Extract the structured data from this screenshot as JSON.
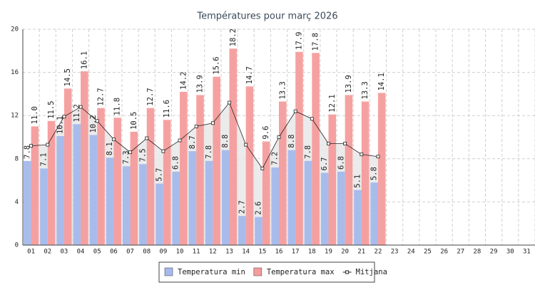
{
  "chart_data": {
    "type": "bar",
    "title": "Températures pour març 2026",
    "categories": [
      "01",
      "02",
      "03",
      "04",
      "05",
      "06",
      "07",
      "08",
      "09",
      "10",
      "11",
      "12",
      "13",
      "14",
      "15",
      "16",
      "17",
      "18",
      "19",
      "20",
      "21",
      "22",
      "23",
      "24",
      "25",
      "26",
      "27",
      "28",
      "29",
      "30",
      "31"
    ],
    "series": [
      {
        "name": "Temperatura min",
        "color": "#a4b9ec",
        "values": [
          7.8,
          7.1,
          10.1,
          11.2,
          10.2,
          8.1,
          7.3,
          7.5,
          5.7,
          6.8,
          8.7,
          7.8,
          8.8,
          2.7,
          2.6,
          7.2,
          8.8,
          7.8,
          6.7,
          6.8,
          5.1,
          5.8,
          null,
          null,
          null,
          null,
          null,
          null,
          null,
          null,
          null
        ],
        "value_labels": [
          "7.8",
          "7.1",
          "10.1",
          "11.2",
          "10.2",
          "8.1",
          "7.3",
          "7.5",
          "5.7",
          "6.8",
          "8.7",
          "7.8",
          "8.8",
          "2.7",
          "2.6",
          "7.2",
          "8.8",
          "7.8",
          "6.7",
          "6.8",
          "5.1",
          "5.8",
          null,
          null,
          null,
          null,
          null,
          null,
          null,
          null,
          null
        ]
      },
      {
        "name": "Temperatura max",
        "color": "#f59c9c",
        "values": [
          11.0,
          11.5,
          14.5,
          16.1,
          12.7,
          11.8,
          10.5,
          12.7,
          11.6,
          14.2,
          13.9,
          15.6,
          18.2,
          14.7,
          9.6,
          13.3,
          17.9,
          17.8,
          12.1,
          13.9,
          13.3,
          14.1,
          null,
          null,
          null,
          null,
          null,
          null,
          null,
          null,
          null
        ],
        "value_labels": [
          "11.0",
          "11.5",
          "14.5",
          "16.1",
          "12.7",
          "11.8",
          "10.5",
          "12.7",
          "11.6",
          "14.2",
          "13.9",
          "15.6",
          "18.2",
          "14.7",
          "9.6",
          "13.3",
          "17.9",
          "17.8",
          "12.1",
          "13.9",
          "13.3",
          "14.1",
          null,
          null,
          null,
          null,
          null,
          null,
          null,
          null,
          null
        ]
      },
      {
        "name": "Mitjana",
        "type": "line",
        "color": "#222222",
        "values": [
          9.2,
          9.3,
          11.9,
          12.8,
          11.5,
          9.8,
          8.6,
          9.9,
          8.7,
          9.7,
          11.0,
          11.3,
          13.2,
          9.3,
          7.1,
          10.0,
          12.4,
          11.7,
          9.4,
          9.4,
          8.4,
          8.2,
          null,
          null,
          null,
          null,
          null,
          null,
          null,
          null,
          null
        ]
      }
    ],
    "ylim": [
      0,
      20
    ],
    "yticks": [
      0,
      4,
      8,
      12,
      16,
      20
    ],
    "grid": true,
    "legend": "bottom"
  }
}
